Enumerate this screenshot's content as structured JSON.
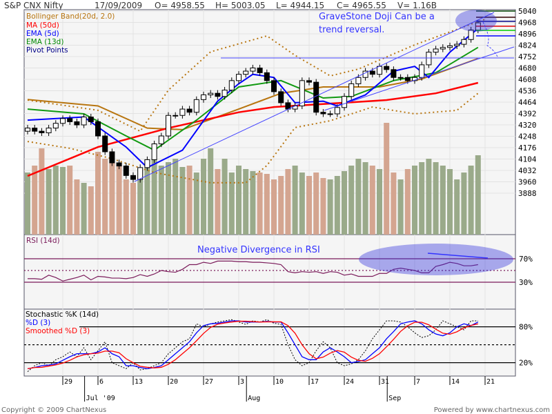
{
  "header": {
    "symbol": "S&P CNX Nifty",
    "date": "17/09/2009",
    "open": "O= 4958.55",
    "high": "H= 5003.05",
    "low": "L= 4944.15",
    "close": "C= 4965.55",
    "volume": "V= 1.16B"
  },
  "legend": [
    {
      "label": "Bollinger Band(20d, 2.0)",
      "color": "#b8750f"
    },
    {
      "label": "MA (50d)",
      "color": "#ff0000"
    },
    {
      "label": "EMA (5d)",
      "color": "#0000ff"
    },
    {
      "label": "EMA (13d)",
      "color": "#008800"
    },
    {
      "label": "Pivot Points",
      "color": "#000088"
    }
  ],
  "annotations": {
    "doji": [
      "GraveStone Doji Can be a",
      "trend reversal."
    ],
    "rsi": "Negative Divergence in RSI",
    "color": "#3333ff"
  },
  "footer": {
    "copyright": "Copyright © 2009 ChartNexus",
    "powered": "Powered by www.chartnexus.com"
  },
  "chart_data": [
    {
      "type": "candlestick",
      "title": "S&P CNX Nifty",
      "ylim": [
        3816,
        5076
      ],
      "yticks": [
        5040,
        4968,
        4896,
        4824,
        4752,
        4680,
        4608,
        4536,
        4464,
        4392,
        4320,
        4248,
        4176,
        4104,
        4032,
        3960,
        3888
      ],
      "xticks": [
        {
          "day": 5,
          "label": "29"
        },
        {
          "day": 10,
          "label": "6"
        },
        {
          "day": 15,
          "label": "13"
        },
        {
          "day": 20,
          "label": "20"
        },
        {
          "day": 25,
          "label": "27"
        },
        {
          "day": 30,
          "label": "3"
        },
        {
          "day": 35,
          "label": "10"
        },
        {
          "day": 40,
          "label": "17"
        },
        {
          "day": 45,
          "label": "24"
        },
        {
          "day": 50,
          "label": "31"
        },
        {
          "day": 55,
          "label": "7"
        },
        {
          "day": 60,
          "label": "14"
        },
        {
          "day": 65,
          "label": "21"
        }
      ],
      "month_labels": [
        {
          "day": 8,
          "label": "Jul '09"
        },
        {
          "day": 31,
          "label": "Aug"
        },
        {
          "day": 51,
          "label": "Sep"
        }
      ],
      "closes": [
        4300,
        4280,
        4270,
        4300,
        4330,
        4360,
        4340,
        4320,
        4370,
        4340,
        4250,
        4150,
        4080,
        4060,
        4000,
        3975,
        4050,
        4100,
        4200,
        4250,
        4380,
        4380,
        4420,
        4400,
        4480,
        4510,
        4520,
        4500,
        4540,
        4600,
        4640,
        4660,
        4680,
        4650,
        4600,
        4530,
        4460,
        4420,
        4440,
        4600,
        4590,
        4400,
        4390,
        4390,
        4430,
        4500,
        4580,
        4620,
        4660,
        4640,
        4690,
        4670,
        4620,
        4620,
        4600,
        4620,
        4700,
        4780,
        4800,
        4810,
        4820,
        4830,
        4860,
        4920,
        4965.55
      ],
      "volume_relative": [
        90,
        100,
        125,
        95,
        100,
        98,
        100,
        80,
        75,
        70,
        120,
        110,
        105,
        100,
        80,
        75,
        95,
        100,
        110,
        100,
        105,
        110,
        98,
        100,
        90,
        110,
        125,
        95,
        110,
        90,
        100,
        95,
        92,
        90,
        88,
        80,
        85,
        95,
        100,
        90,
        85,
        90,
        82,
        80,
        85,
        92,
        100,
        110,
        105,
        100,
        95,
        162,
        90,
        80,
        95,
        100,
        105,
        110,
        105,
        100,
        95,
        80,
        90,
        100,
        115
      ],
      "ma50": [
        [
          0,
          3997
        ],
        [
          10,
          4180
        ],
        [
          20,
          4300
        ],
        [
          30,
          4400
        ],
        [
          35,
          4433
        ],
        [
          45,
          4460
        ],
        [
          51,
          4477
        ],
        [
          58,
          4520
        ],
        [
          64,
          4586
        ]
      ],
      "bollinger_mid": [
        [
          0,
          4480
        ],
        [
          10,
          4440
        ],
        [
          17,
          4300
        ],
        [
          22,
          4290
        ],
        [
          30,
          4420
        ],
        [
          36,
          4520
        ],
        [
          42,
          4560
        ],
        [
          50,
          4560
        ],
        [
          56,
          4610
        ],
        [
          64,
          4740
        ]
      ],
      "bollinger_upper": [
        [
          0,
          4477
        ],
        [
          10,
          4412
        ],
        [
          16,
          4280
        ],
        [
          20,
          4540
        ],
        [
          26,
          4782
        ],
        [
          34,
          4883
        ],
        [
          38,
          4760
        ],
        [
          43,
          4630
        ],
        [
          47,
          4673
        ],
        [
          55,
          4826
        ],
        [
          63,
          4957
        ],
        [
          65,
          4988
        ]
      ],
      "bollinger_lower": [
        [
          0,
          4215
        ],
        [
          6,
          4172
        ],
        [
          12,
          4106
        ],
        [
          18,
          4019
        ],
        [
          26,
          3954
        ],
        [
          31,
          3954
        ],
        [
          34,
          4063
        ],
        [
          38,
          4303
        ],
        [
          43,
          4346
        ],
        [
          49,
          4433
        ],
        [
          55,
          4390
        ],
        [
          61,
          4412
        ],
        [
          64,
          4520
        ]
      ],
      "ema13": [
        [
          0,
          4420
        ],
        [
          8,
          4390
        ],
        [
          14,
          4250
        ],
        [
          18,
          4160
        ],
        [
          24,
          4350
        ],
        [
          30,
          4560
        ],
        [
          36,
          4600
        ],
        [
          42,
          4490
        ],
        [
          46,
          4500
        ],
        [
          52,
          4600
        ],
        [
          58,
          4650
        ],
        [
          64,
          4810
        ]
      ],
      "ema5": [
        [
          0,
          4350
        ],
        [
          8,
          4370
        ],
        [
          14,
          4180
        ],
        [
          17,
          4050
        ],
        [
          22,
          4160
        ],
        [
          27,
          4470
        ],
        [
          30,
          4580
        ],
        [
          32,
          4640
        ],
        [
          35,
          4620
        ],
        [
          38,
          4460
        ],
        [
          42,
          4470
        ],
        [
          44,
          4440
        ],
        [
          48,
          4510
        ],
        [
          52,
          4660
        ],
        [
          55,
          4690
        ],
        [
          57,
          4620
        ],
        [
          60,
          4780
        ],
        [
          64,
          4930
        ]
      ],
      "pivots": [
        {
          "value": 5040,
          "color": "#004400"
        },
        {
          "value": 5001,
          "color": "#330000"
        },
        {
          "value": 4975,
          "color": "#000088"
        },
        {
          "value": 4944,
          "color": "#dd0000"
        },
        {
          "value": 4918,
          "color": "#00cc00"
        },
        {
          "value": 4883,
          "color": "#0000ff"
        }
      ],
      "colors": {
        "up_volume": "#9aaa8a",
        "down_volume": "#d4a590"
      }
    },
    {
      "type": "line",
      "title": "RSI (14d)",
      "ylim": [
        0,
        100
      ],
      "levels": [
        {
          "value": 70,
          "label": "70%"
        },
        {
          "value": 30,
          "label": "30%"
        },
        {
          "value": 50,
          "label": ""
        }
      ],
      "values": [
        36,
        36,
        35,
        42,
        38,
        32,
        35,
        38,
        42,
        34,
        40,
        39,
        37,
        37,
        36,
        38,
        43,
        40,
        44,
        50,
        48,
        47,
        52,
        60,
        60,
        64,
        62,
        66,
        66,
        66,
        65,
        65,
        64,
        64,
        63,
        62,
        60,
        48,
        46,
        48,
        47,
        48,
        45,
        48,
        47,
        42,
        44,
        40,
        40,
        40,
        45,
        45,
        52,
        54,
        52,
        50,
        46,
        46,
        57,
        60,
        64,
        62,
        58,
        58,
        60
      ],
      "color": "#7a1a5a"
    },
    {
      "type": "line",
      "title": "Stochastic %K (14d)",
      "series_labels": {
        "d": "%D (3)",
        "smoothed": "Smoothed %D (3)"
      },
      "ylim": [
        0,
        100
      ],
      "levels": [
        {
          "value": 80,
          "label": "80%"
        },
        {
          "value": 20,
          "label": "20%"
        },
        {
          "value": 50,
          "label": ""
        }
      ],
      "k": [
        5,
        15,
        20,
        15,
        25,
        30,
        38,
        30,
        45,
        25,
        40,
        55,
        20,
        15,
        10,
        20,
        8,
        10,
        15,
        20,
        35,
        45,
        55,
        60,
        85,
        80,
        85,
        88,
        90,
        92,
        88,
        84,
        90,
        88,
        92,
        86,
        84,
        50,
        25,
        15,
        20,
        40,
        55,
        45,
        20,
        15,
        18,
        25,
        40,
        60,
        75,
        90,
        90,
        88,
        80,
        70,
        62,
        65,
        75,
        90,
        85,
        80,
        75,
        90,
        90
      ],
      "d": [
        10,
        12,
        15,
        16,
        18,
        24,
        30,
        35,
        35,
        35,
        38,
        45,
        35,
        30,
        15,
        15,
        12,
        10,
        12,
        15,
        25,
        35,
        45,
        55,
        70,
        82,
        85,
        86,
        88,
        90,
        90,
        88,
        88,
        88,
        89,
        88,
        88,
        70,
        50,
        30,
        25,
        25,
        38,
        45,
        38,
        30,
        20,
        22,
        25,
        35,
        45,
        60,
        72,
        85,
        88,
        90,
        85,
        75,
        68,
        65,
        70,
        80,
        85,
        82,
        88
      ],
      "colors": {
        "k": "#000000",
        "d": "#0000ff",
        "smoothed": "#ff0000"
      }
    }
  ]
}
